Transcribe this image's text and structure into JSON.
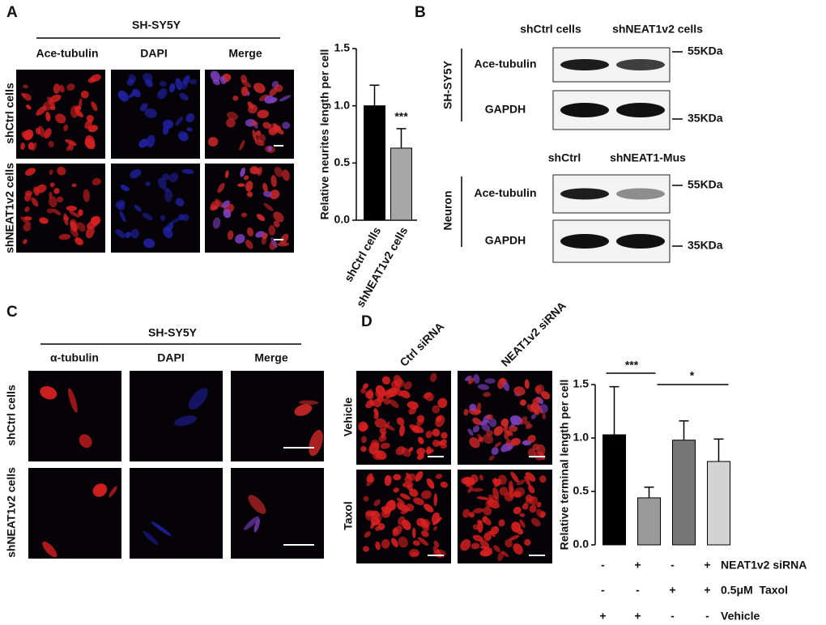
{
  "panels": {
    "A": {
      "label": "A",
      "title": "SH-SY5Y",
      "columns": [
        "Ace-tubulin",
        "DAPI",
        "Merge"
      ],
      "rows": [
        "shCtrl cells",
        "shNEAT1v2 cells"
      ]
    },
    "B": {
      "label": "B",
      "blots": [
        {
          "group": "SH-SY5Y",
          "lanes": [
            "shCtrl cells",
            "shNEAT1v2 cells"
          ],
          "bands": [
            "Ace-tubulin",
            "GAPDH"
          ],
          "markers": [
            "55KDa",
            "35KDa"
          ]
        },
        {
          "group": "Neuron",
          "lanes": [
            "shCtrl",
            "shNEAT1-Mus"
          ],
          "bands": [
            "Ace-tubulin",
            "GAPDH"
          ],
          "markers": [
            "55KDa",
            "35KDa"
          ]
        }
      ]
    },
    "C": {
      "label": "C",
      "title": "SH-SY5Y",
      "columns": [
        "α-tubulin",
        "DAPI",
        "Merge"
      ],
      "rows": [
        "shCtrl cells",
        "shNEAT1v2 cells"
      ]
    },
    "D": {
      "label": "D",
      "columns": [
        "Ctrl siRNA",
        "NEAT1v2 siRNA"
      ],
      "rows": [
        "Vehicle",
        "Taxol"
      ]
    }
  },
  "chart_data": [
    {
      "type": "bar",
      "y_label": "Relative neurites length per cell",
      "categories": [
        "shCtrl cells",
        "shNEAT1v2 cells"
      ],
      "values": [
        1.0,
        0.63
      ],
      "errors": [
        0.18,
        0.17
      ],
      "colors": [
        "#000000",
        "#a6a6a6"
      ],
      "annotations": [
        "***"
      ],
      "ylim": [
        0,
        1.5
      ],
      "yticks": [
        {
          "value": 0,
          "label": "0.0"
        },
        0.5,
        {
          "value": 1,
          "label": "1.0"
        },
        1.5
      ]
    },
    {
      "type": "bar",
      "y_label": "Relative terminal length per cell",
      "categories": [
        null,
        null,
        null,
        null
      ],
      "values": [
        1.03,
        0.44,
        0.98,
        0.78
      ],
      "errors": [
        0.45,
        0.1,
        0.18,
        0.21
      ],
      "colors": [
        "#000000",
        "#9a9a9a",
        "#767676",
        "#d3d3d3"
      ],
      "annotations": [
        "***",
        "*"
      ],
      "ylim": [
        0,
        1.5
      ],
      "yticks": [
        {
          "value": 0,
          "label": "0.0"
        },
        0.5,
        {
          "value": 1,
          "label": "1.0"
        },
        1.5
      ],
      "conditions": [
        {
          "signs": [
            "-",
            "+",
            "-",
            "+"
          ],
          "label": "NEAT1v2 siRNA"
        },
        {
          "signs": [
            "-",
            "-",
            "+",
            "+"
          ],
          "label": "0.5μM  Taxol"
        },
        {
          "signs": [
            "+",
            "+",
            "-",
            "-"
          ],
          "label": "Vehicle"
        }
      ]
    }
  ]
}
